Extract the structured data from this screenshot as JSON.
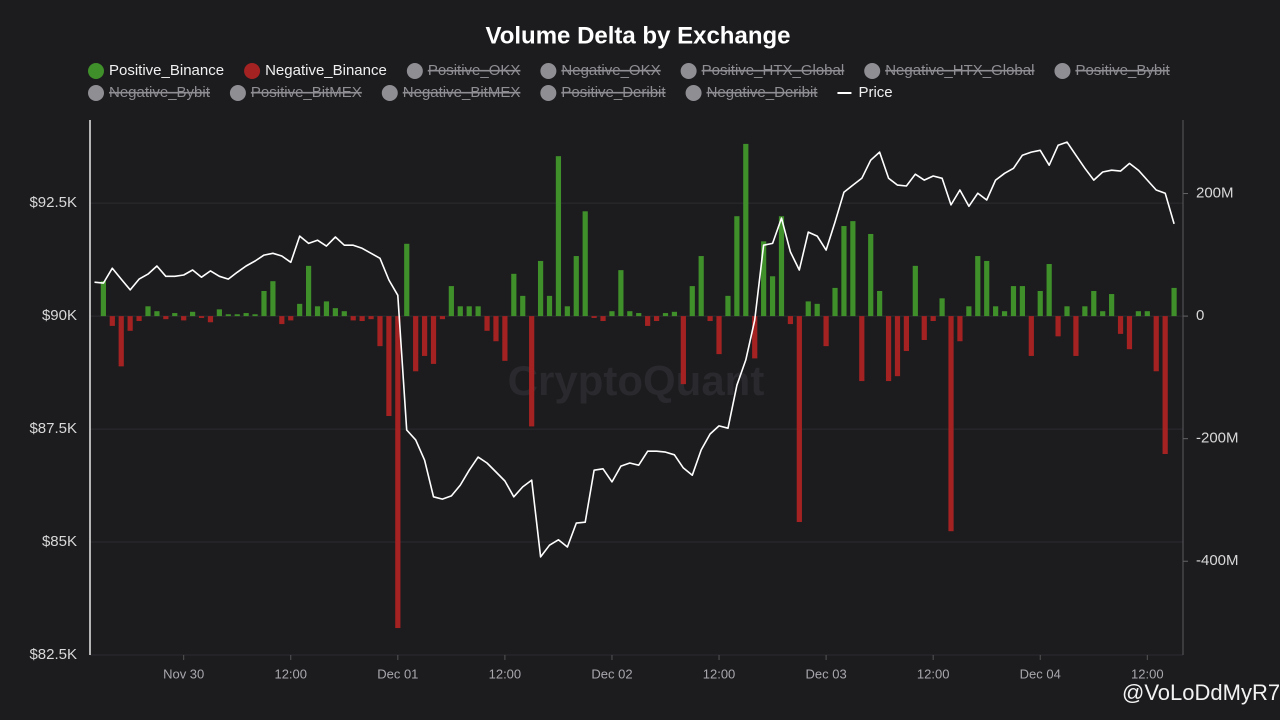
{
  "chart_data": {
    "type": "bar-line",
    "title": "Volume Delta by Exchange",
    "watermark": "CryptoQuant",
    "overlay_handle": "@VoLoDdMyR7",
    "x": [
      "Nov 29 14:00",
      "Nov 29 15:00",
      "Nov 29 16:00",
      "Nov 29 17:00",
      "Nov 29 18:00",
      "Nov 29 19:00",
      "Nov 29 20:00",
      "Nov 29 21:00",
      "Nov 29 22:00",
      "Nov 29 23:00",
      "Nov 30 00:00",
      "Nov 30 01:00",
      "Nov 30 02:00",
      "Nov 30 03:00",
      "Nov 30 04:00",
      "Nov 30 05:00",
      "Nov 30 06:00",
      "Nov 30 07:00",
      "Nov 30 08:00",
      "Nov 30 09:00",
      "Nov 30 10:00",
      "Nov 30 11:00",
      "Nov 30 12:00",
      "Nov 30 13:00",
      "Nov 30 14:00",
      "Nov 30 15:00",
      "Nov 30 16:00",
      "Nov 30 17:00",
      "Nov 30 18:00",
      "Nov 30 19:00",
      "Nov 30 20:00",
      "Nov 30 21:00",
      "Nov 30 22:00",
      "Nov 30 23:00",
      "Dec 01 00:00",
      "Dec 01 01:00",
      "Dec 01 02:00",
      "Dec 01 03:00",
      "Dec 01 04:00",
      "Dec 01 05:00",
      "Dec 01 06:00",
      "Dec 01 07:00",
      "Dec 01 08:00",
      "Dec 01 09:00",
      "Dec 01 10:00",
      "Dec 01 11:00",
      "Dec 01 12:00",
      "Dec 01 13:00",
      "Dec 01 14:00",
      "Dec 01 15:00",
      "Dec 01 16:00",
      "Dec 01 17:00",
      "Dec 01 18:00",
      "Dec 01 19:00",
      "Dec 01 20:00",
      "Dec 01 21:00",
      "Dec 01 22:00",
      "Dec 01 23:00",
      "Dec 02 00:00",
      "Dec 02 01:00",
      "Dec 02 02:00",
      "Dec 02 03:00",
      "Dec 02 04:00",
      "Dec 02 05:00",
      "Dec 02 06:00",
      "Dec 02 07:00",
      "Dec 02 08:00",
      "Dec 02 09:00",
      "Dec 02 10:00",
      "Dec 02 11:00",
      "Dec 02 12:00",
      "Dec 02 13:00",
      "Dec 02 14:00",
      "Dec 02 15:00",
      "Dec 02 16:00",
      "Dec 02 17:00",
      "Dec 02 18:00",
      "Dec 02 19:00",
      "Dec 02 20:00",
      "Dec 02 21:00",
      "Dec 02 22:00",
      "Dec 02 23:00",
      "Dec 03 00:00",
      "Dec 03 01:00",
      "Dec 03 02:00",
      "Dec 03 03:00",
      "Dec 03 04:00",
      "Dec 03 05:00",
      "Dec 03 06:00",
      "Dec 03 07:00",
      "Dec 03 08:00",
      "Dec 03 09:00",
      "Dec 03 10:00",
      "Dec 03 11:00",
      "Dec 03 12:00",
      "Dec 03 13:00",
      "Dec 03 14:00",
      "Dec 03 15:00",
      "Dec 03 16:00",
      "Dec 03 17:00",
      "Dec 03 18:00",
      "Dec 03 19:00",
      "Dec 03 20:00",
      "Dec 03 21:00",
      "Dec 03 22:00",
      "Dec 03 23:00",
      "Dec 04 00:00",
      "Dec 04 01:00",
      "Dec 04 02:00",
      "Dec 04 03:00",
      "Dec 04 04:00",
      "Dec 04 05:00",
      "Dec 04 06:00",
      "Dec 04 07:00",
      "Dec 04 08:00",
      "Dec 04 09:00",
      "Dec 04 10:00",
      "Dec 04 11:00",
      "Dec 04 12:00",
      "Dec 04 13:00",
      "Dec 04 14:00",
      "Dec 04 15:00"
    ],
    "xlim": [
      "Nov 29 13:30",
      "Dec 04 16:00"
    ],
    "xticks": [
      {
        "value": "Nov 30 00:00",
        "label": "Nov 30"
      },
      {
        "value": "Nov 30 12:00",
        "label": "12:00"
      },
      {
        "value": "Dec 01 00:00",
        "label": "Dec 01"
      },
      {
        "value": "Dec 01 12:00",
        "label": "12:00"
      },
      {
        "value": "Dec 02 00:00",
        "label": "Dec 02"
      },
      {
        "value": "Dec 02 12:00",
        "label": "12:00"
      },
      {
        "value": "Dec 03 00:00",
        "label": "Dec 03"
      },
      {
        "value": "Dec 03 12:00",
        "label": "12:00"
      },
      {
        "value": "Dec 04 00:00",
        "label": "Dec 04"
      },
      {
        "value": "Dec 04 12:00",
        "label": "12:00"
      }
    ],
    "ylim": [
      82500,
      94340
    ],
    "yticks": [
      {
        "value": 82500,
        "label": "$82.5K"
      },
      {
        "value": 85000,
        "label": "$85K"
      },
      {
        "value": 87500,
        "label": "$87.5K"
      },
      {
        "value": 90000,
        "label": "$90K"
      },
      {
        "value": 92500,
        "label": "$92.5K"
      }
    ],
    "y2lim": [
      -553,
      320
    ],
    "y2ticks": [
      {
        "value": -400,
        "label": "-400M"
      },
      {
        "value": -200,
        "label": "-200M"
      },
      0,
      {
        "value": 200,
        "label": "200M"
      }
    ],
    "grid": true,
    "series": [
      {
        "name": "Positive_Binance",
        "color": "#3f8f2a",
        "axis": "y2",
        "visible": true,
        "values": [
          null,
          57,
          null,
          null,
          null,
          null,
          16,
          8,
          null,
          5,
          null,
          7,
          null,
          null,
          11,
          3,
          3,
          5,
          3,
          41,
          57,
          null,
          null,
          20,
          82,
          16,
          24,
          13,
          8,
          null,
          null,
          null,
          null,
          null,
          null,
          118,
          null,
          null,
          null,
          null,
          49,
          16,
          16,
          16,
          null,
          null,
          null,
          69,
          33,
          null,
          90,
          33,
          261,
          16,
          98,
          171,
          null,
          null,
          8,
          75,
          8,
          5,
          null,
          null,
          5,
          7,
          null,
          49,
          98,
          null,
          null,
          33,
          163,
          281,
          null,
          122,
          65,
          163,
          null,
          null,
          24,
          20,
          null,
          46,
          147,
          155,
          null,
          134,
          41,
          null,
          null,
          null,
          82,
          null,
          null,
          29,
          null,
          null,
          16,
          98,
          90,
          16,
          8,
          49,
          49,
          null,
          41,
          85,
          null,
          16,
          null,
          16,
          41,
          8,
          36,
          null,
          null,
          8,
          8,
          null,
          null,
          46
        ]
      },
      {
        "name": "Negative_Binance",
        "color": "#a52222",
        "axis": "y2",
        "visible": true,
        "values": [
          null,
          null,
          -16,
          -82,
          -24,
          -8,
          null,
          null,
          -5,
          null,
          -7,
          null,
          -3,
          -10,
          null,
          null,
          null,
          null,
          null,
          null,
          null,
          -13,
          -7,
          null,
          null,
          null,
          null,
          null,
          null,
          -7,
          -8,
          -5,
          -49,
          -163,
          -509,
          null,
          -90,
          -65,
          -78,
          -5,
          null,
          null,
          null,
          null,
          -24,
          -41,
          -73,
          null,
          null,
          -180,
          null,
          null,
          null,
          null,
          null,
          null,
          -3,
          -8,
          null,
          null,
          null,
          null,
          -16,
          -8,
          null,
          null,
          -111,
          null,
          null,
          -8,
          -62,
          null,
          null,
          null,
          -69,
          null,
          null,
          null,
          -13,
          -336,
          null,
          null,
          -49,
          null,
          null,
          null,
          -106,
          null,
          null,
          -106,
          -98,
          -57,
          null,
          -39,
          -8,
          null,
          -351,
          -41,
          null,
          null,
          null,
          null,
          null,
          null,
          null,
          -65,
          null,
          null,
          -33,
          null,
          -65,
          null,
          null,
          null,
          null,
          -29,
          -54,
          null,
          null,
          -90,
          -225,
          null
        ]
      },
      {
        "name": "Positive_OKX",
        "color": "#8e8e93",
        "visible": false
      },
      {
        "name": "Negative_OKX",
        "color": "#8e8e93",
        "visible": false
      },
      {
        "name": "Positive_HTX_Global",
        "color": "#8e8e93",
        "visible": false
      },
      {
        "name": "Negative_HTX_Global",
        "color": "#8e8e93",
        "visible": false
      },
      {
        "name": "Positive_Bybit",
        "color": "#8e8e93",
        "visible": false
      },
      {
        "name": "Negative_Bybit",
        "color": "#8e8e93",
        "visible": false
      },
      {
        "name": "Positive_BitMEX",
        "color": "#8e8e93",
        "visible": false
      },
      {
        "name": "Negative_BitMEX",
        "color": "#8e8e93",
        "visible": false
      },
      {
        "name": "Positive_Deribit",
        "color": "#8e8e93",
        "visible": false
      },
      {
        "name": "Negative_Deribit",
        "color": "#8e8e93",
        "visible": false
      },
      {
        "name": "Price",
        "color": "#ffffff",
        "axis": "y",
        "visible": true,
        "values": [
          90750,
          90730,
          91060,
          90820,
          90580,
          90820,
          90930,
          91110,
          90880,
          90880,
          90910,
          91020,
          90860,
          91000,
          90880,
          90820,
          90970,
          91110,
          91220,
          91350,
          91390,
          91330,
          91190,
          91770,
          91610,
          91680,
          91550,
          91750,
          91570,
          91570,
          91500,
          91390,
          91280,
          90800,
          90460,
          87480,
          87260,
          86810,
          86000,
          85950,
          86020,
          86260,
          86590,
          86880,
          86750,
          86550,
          86350,
          86000,
          86220,
          86370,
          84670,
          84930,
          85050,
          84890,
          85420,
          85440,
          86590,
          86620,
          86330,
          86680,
          86750,
          86700,
          87010,
          87010,
          86990,
          86930,
          86640,
          86480,
          87040,
          87390,
          87570,
          87520,
          88470,
          89030,
          89910,
          91570,
          91610,
          92170,
          91420,
          91020,
          91860,
          91770,
          91460,
          92080,
          92740,
          92900,
          93050,
          93450,
          93630,
          93050,
          92900,
          92880,
          93140,
          93010,
          93100,
          93050,
          92460,
          92790,
          92430,
          92720,
          92570,
          93010,
          93160,
          93270,
          93560,
          93630,
          93670,
          93340,
          93780,
          93850,
          93560,
          93270,
          93010,
          93190,
          93230,
          93210,
          93380,
          93230,
          93010,
          92790,
          92720,
          92040
        ]
      }
    ]
  }
}
